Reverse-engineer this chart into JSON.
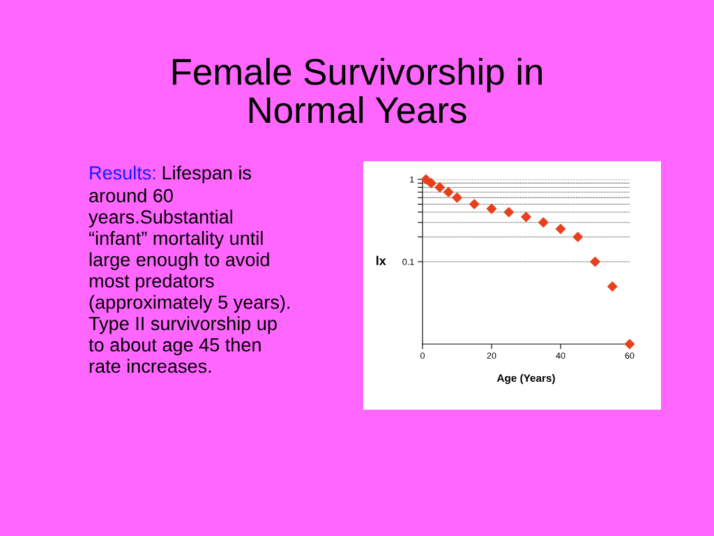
{
  "chart_data": {
    "type": "scatter",
    "title": "Female Survivorship in\nNormal Years",
    "xlabel": "Age (Years)",
    "ylabel": "lx",
    "annotations": [
      "Results:",
      "Lifespan is\naround 60\nyears.Substantial\n“infant” mortality until\nlarge enough to avoid\nmost predators\n(approximately 5 years).\nType II survivorship up\nto about age 45 then\nrate increases."
    ],
    "x": [
      1,
      2.5,
      5,
      7.5,
      10,
      15,
      20,
      25,
      30,
      35,
      40,
      45,
      50,
      55,
      60
    ],
    "series": [
      {
        "color": "#e8401c",
        "values": [
          1.0,
          0.9,
          0.8,
          0.7,
          0.6,
          0.5,
          0.44,
          0.4,
          0.35,
          0.3,
          0.25,
          0.2,
          0.1,
          0.05,
          0.01
        ]
      }
    ],
    "marker": "diamond",
    "log": "y",
    "grid": "y",
    "xlim": [
      0,
      60
    ],
    "xticks": [
      0,
      20,
      40,
      60
    ],
    "ylim": [
      0.01,
      1
    ],
    "yticks": [
      {
        "value": 0.1,
        "label": "0.1"
      },
      {
        "value": 0.2,
        "label": null
      },
      {
        "value": 0.3,
        "label": null
      },
      {
        "value": 0.4,
        "label": null
      },
      {
        "value": 0.5,
        "label": null
      },
      {
        "value": 0.6,
        "label": null
      },
      {
        "value": 0.7,
        "label": null
      },
      {
        "value": 0.8,
        "label": null
      },
      {
        "value": 0.9,
        "label": null
      },
      1
    ]
  }
}
